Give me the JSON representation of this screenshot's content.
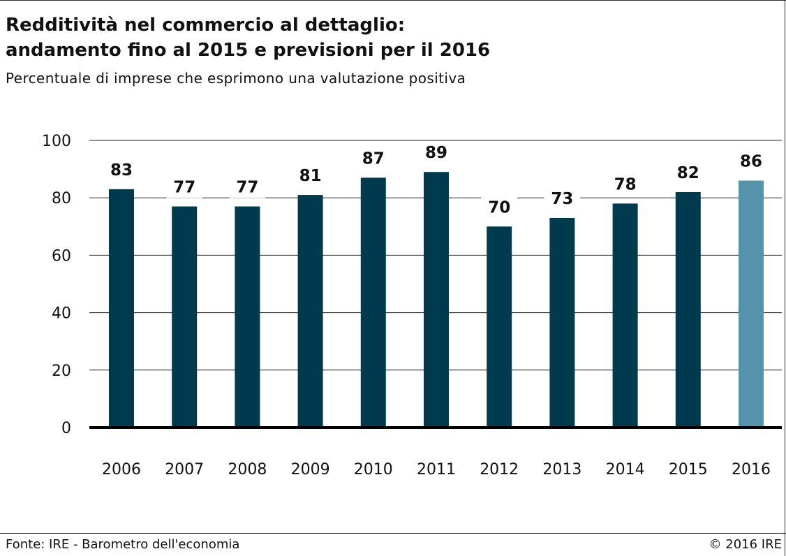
{
  "header": {
    "title_line1": "Redditività nel commercio al dettaglio:",
    "title_line2": "andamento fino al 2015 e previsioni per il 2016",
    "subtitle": "Percentuale di imprese che esprimono una valutazione positiva"
  },
  "footer": {
    "source": "Fonte: IRE - Barometro dell'economia",
    "copyright": "© 2016 IRE"
  },
  "colors": {
    "bar": "#003a4f",
    "bar_forecast": "#5593ab",
    "gridline": "#222222",
    "baseline": "#000000"
  },
  "chart_data": {
    "type": "bar",
    "title": "Redditività nel commercio al dettaglio: andamento fino al 2015 e previsioni per il 2016",
    "subtitle": "Percentuale di imprese che esprimono una valutazione positiva",
    "categories": [
      "2006",
      "2007",
      "2008",
      "2009",
      "2010",
      "2011",
      "2012",
      "2013",
      "2014",
      "2015",
      "2016"
    ],
    "values": [
      83,
      77,
      77,
      81,
      87,
      89,
      70,
      73,
      78,
      82,
      86
    ],
    "data_labels": [
      "83",
      "77",
      "77",
      "81",
      "87",
      "89",
      "70",
      "73",
      "78",
      "82",
      "86"
    ],
    "forecast_categories": [
      "2016"
    ],
    "ylim": [
      0,
      100
    ],
    "yticks": [
      0,
      20,
      40,
      60,
      80,
      100
    ],
    "ytick_labels": [
      "0",
      "20",
      "40",
      "60",
      "80",
      "100"
    ],
    "xlabel": "",
    "ylabel": "",
    "grid": true,
    "legend": "none"
  }
}
